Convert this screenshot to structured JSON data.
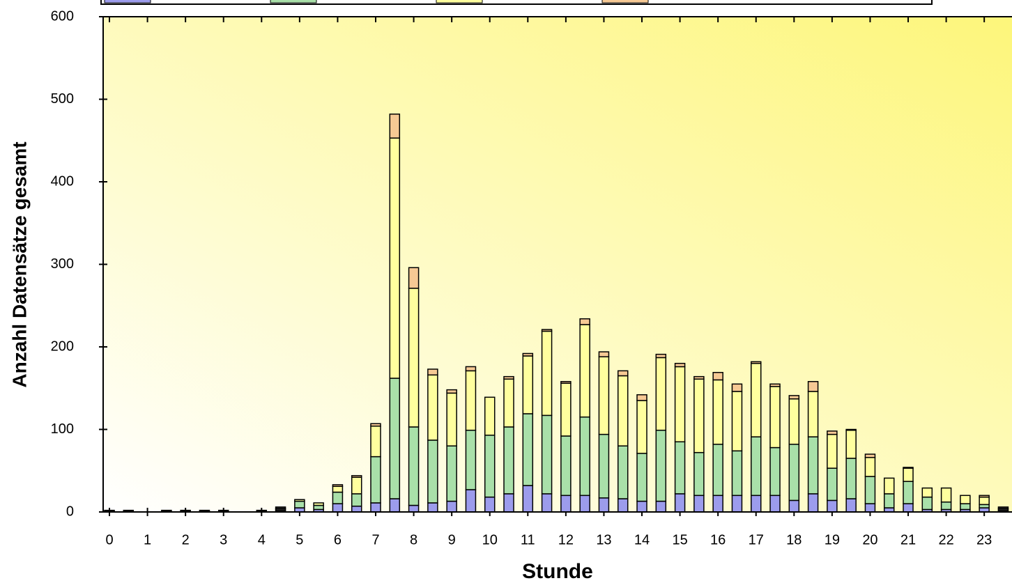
{
  "chart_data": {
    "type": "stacked_bar",
    "x_label": "Stunde",
    "y_label": "Anzahl Datensätze gesamt",
    "x": [
      0,
      0.5,
      1,
      1.5,
      2,
      2.5,
      3,
      3.5,
      4,
      4.5,
      5,
      5.5,
      6,
      6.5,
      7,
      7.5,
      8,
      8.5,
      9,
      9.5,
      10,
      10.5,
      11,
      11.5,
      12,
      12.5,
      13,
      13.5,
      14,
      14.5,
      15,
      15.5,
      16,
      16.5,
      17,
      17.5,
      18,
      18.5,
      19,
      19.5,
      20,
      20.5,
      21,
      21.5,
      22,
      22.5,
      23,
      23.5
    ],
    "series": [
      {
        "color": "#9c9cec",
        "values": [
          1,
          1,
          0,
          1,
          1,
          1,
          1,
          0,
          1,
          2,
          5,
          3,
          10,
          7,
          11,
          16,
          8,
          11,
          13,
          27,
          18,
          22,
          32,
          22,
          20,
          20,
          17,
          16,
          13,
          13,
          22,
          20,
          20,
          20,
          20,
          20,
          14,
          22,
          14,
          16,
          10,
          5,
          10,
          3,
          3,
          3,
          5,
          2
        ]
      },
      {
        "color": "#a9e0a9",
        "values": [
          0,
          0,
          0,
          0,
          0,
          0,
          0,
          0,
          0,
          2,
          8,
          5,
          14,
          15,
          56,
          146,
          95,
          76,
          67,
          72,
          75,
          81,
          87,
          95,
          72,
          95,
          77,
          64,
          58,
          86,
          63,
          52,
          62,
          54,
          71,
          58,
          68,
          69,
          39,
          49,
          33,
          17,
          27,
          15,
          9,
          7,
          4,
          2
        ]
      },
      {
        "color": "#ffff9e",
        "values": [
          1,
          1,
          0,
          1,
          1,
          1,
          1,
          0,
          1,
          2,
          2,
          3,
          7,
          20,
          37,
          291,
          168,
          79,
          64,
          72,
          46,
          58,
          70,
          102,
          64,
          112,
          94,
          85,
          64,
          88,
          91,
          89,
          78,
          72,
          89,
          74,
          55,
          55,
          41,
          34,
          23,
          19,
          16,
          11,
          17,
          10,
          9,
          2
        ]
      },
      {
        "color": "#f6c994",
        "values": [
          0,
          0,
          0,
          0,
          0,
          0,
          0,
          0,
          0,
          0,
          0,
          0,
          2,
          2,
          3,
          29,
          25,
          7,
          4,
          5,
          0,
          3,
          3,
          2,
          2,
          7,
          6,
          6,
          7,
          4,
          4,
          3,
          9,
          9,
          2,
          3,
          4,
          12,
          4,
          1,
          4,
          0,
          1,
          0,
          0,
          0,
          2,
          0
        ]
      }
    ],
    "xlim": [
      -0.165,
      23.73
    ],
    "xticks": [
      0,
      1,
      2,
      3,
      4,
      5,
      6,
      7,
      8,
      9,
      10,
      11,
      12,
      13,
      14,
      15,
      16,
      17,
      18,
      19,
      20,
      21,
      22,
      23
    ],
    "ylim": [
      0,
      600
    ],
    "yticks": [
      0,
      100,
      200,
      300,
      400,
      500,
      600
    ]
  }
}
